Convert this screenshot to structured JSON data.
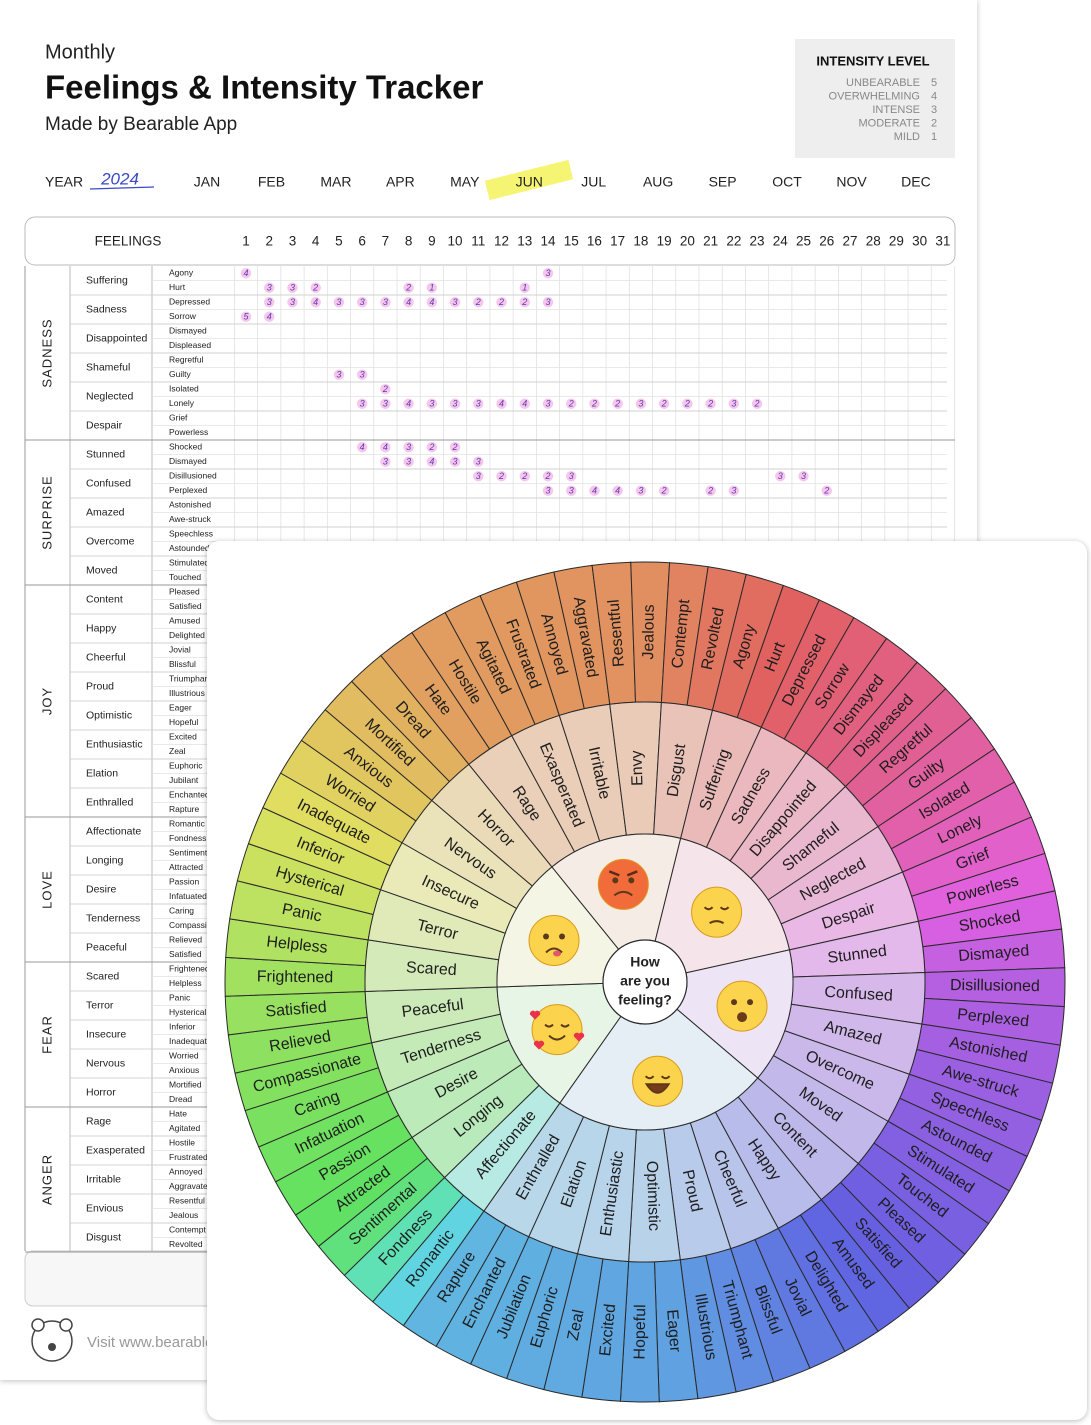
{
  "header": {
    "subtitle": "Monthly",
    "title": "Feelings & Intensity Tracker",
    "byline": "Made by Bearable App"
  },
  "intensity": {
    "title": "INTENSITY LEVEL",
    "levels": [
      {
        "label": "UNBEARABLE",
        "value": 5
      },
      {
        "label": "OVERWHELMING",
        "value": 4
      },
      {
        "label": "INTENSE",
        "value": 3
      },
      {
        "label": "MODERATE",
        "value": 2
      },
      {
        "label": "MILD",
        "value": 1
      }
    ]
  },
  "year": {
    "label": "YEAR",
    "value": "2024"
  },
  "months": [
    "JAN",
    "FEB",
    "MAR",
    "APR",
    "MAY",
    "JUN",
    "JUL",
    "AUG",
    "SEP",
    "OCT",
    "NOV",
    "DEC"
  ],
  "table": {
    "header": "FEELINGS",
    "days": [
      1,
      2,
      3,
      4,
      5,
      6,
      7,
      8,
      9,
      10,
      11,
      12,
      13,
      14,
      15,
      16,
      17,
      18,
      19,
      20,
      21,
      22,
      23,
      24,
      25,
      26,
      27,
      28,
      29,
      30,
      31
    ],
    "groups": [
      {
        "name": "SADNESS",
        "feelings": [
          {
            "name": "Suffering",
            "subs": [
              {
                "name": "Agony",
                "entries": {
                  "1": 4,
                  "14": 3
                }
              },
              {
                "name": "Hurt",
                "entries": {
                  "2": 3,
                  "3": 3,
                  "4": 2,
                  "8": 2,
                  "9": 1,
                  "13": 1
                }
              }
            ]
          },
          {
            "name": "Sadness",
            "subs": [
              {
                "name": "Depressed",
                "entries": {
                  "2": 3,
                  "3": 3,
                  "4": 4,
                  "5": 3,
                  "6": 3,
                  "7": 3,
                  "8": 4,
                  "9": 4,
                  "10": 3,
                  "11": 2,
                  "12": 2,
                  "13": 2,
                  "14": 3
                }
              },
              {
                "name": "Sorrow",
                "entries": {
                  "1": 5,
                  "2": 4
                }
              }
            ]
          },
          {
            "name": "Disappointed",
            "subs": [
              {
                "name": "Dismayed"
              },
              {
                "name": "Displeased"
              }
            ]
          },
          {
            "name": "Shameful",
            "subs": [
              {
                "name": "Regretful"
              },
              {
                "name": "Guilty",
                "entries": {
                  "5": 3,
                  "6": 3
                }
              }
            ]
          },
          {
            "name": "Neglected",
            "subs": [
              {
                "name": "Isolated",
                "entries": {
                  "7": 2
                }
              },
              {
                "name": "Lonely",
                "entries": {
                  "6": 3,
                  "7": 3,
                  "8": 4,
                  "9": 3,
                  "10": 3,
                  "11": 3,
                  "12": 4,
                  "13": 4,
                  "14": 3,
                  "15": 2,
                  "16": 2,
                  "17": 2,
                  "18": 3,
                  "19": 2,
                  "20": 2,
                  "21": 2,
                  "22": 3,
                  "23": 2
                }
              }
            ]
          },
          {
            "name": "Despair",
            "subs": [
              {
                "name": "Grief"
              },
              {
                "name": "Powerless"
              }
            ]
          }
        ]
      },
      {
        "name": "SURPRISE",
        "feelings": [
          {
            "name": "Stunned",
            "subs": [
              {
                "name": "Shocked",
                "entries": {
                  "6": 4,
                  "7": 4,
                  "8": 3,
                  "9": 2,
                  "10": 2
                }
              },
              {
                "name": "Dismayed",
                "entries": {
                  "7": 3,
                  "8": 3,
                  "9": 4,
                  "10": 3,
                  "11": 3
                }
              }
            ]
          },
          {
            "name": "Confused",
            "subs": [
              {
                "name": "Disillusioned",
                "entries": {
                  "11": 3,
                  "12": 2,
                  "13": 2,
                  "14": 2,
                  "15": 3,
                  "24": 3,
                  "25": 3
                }
              },
              {
                "name": "Perplexed",
                "entries": {
                  "14": 3,
                  "15": 3,
                  "16": 4,
                  "17": 4,
                  "18": 3,
                  "19": 2,
                  "21": 2,
                  "22": 3,
                  "26": 2
                }
              }
            ]
          },
          {
            "name": "Amazed",
            "subs": [
              {
                "name": "Astonished"
              },
              {
                "name": "Awe-struck"
              }
            ]
          },
          {
            "name": "Overcome",
            "subs": [
              {
                "name": "Speechless"
              },
              {
                "name": "Astounded"
              }
            ]
          },
          {
            "name": "Moved",
            "subs": [
              {
                "name": "Stimulated"
              },
              {
                "name": "Touched"
              }
            ]
          }
        ]
      },
      {
        "name": "JOY",
        "feelings": [
          {
            "name": "Content",
            "subs": [
              {
                "name": "Pleased"
              },
              {
                "name": "Satisfied"
              }
            ]
          },
          {
            "name": "Happy",
            "subs": [
              {
                "name": "Amused"
              },
              {
                "name": "Delighted"
              }
            ]
          },
          {
            "name": "Cheerful",
            "subs": [
              {
                "name": "Jovial"
              },
              {
                "name": "Blissful"
              }
            ]
          },
          {
            "name": "Proud",
            "subs": [
              {
                "name": "Triumphant"
              },
              {
                "name": "Illustrious"
              }
            ]
          },
          {
            "name": "Optimistic",
            "subs": [
              {
                "name": "Eager"
              },
              {
                "name": "Hopeful"
              }
            ]
          },
          {
            "name": "Enthusiastic",
            "subs": [
              {
                "name": "Excited"
              },
              {
                "name": "Zeal"
              }
            ]
          },
          {
            "name": "Elation",
            "subs": [
              {
                "name": "Euphoric"
              },
              {
                "name": "Jubilant"
              }
            ]
          },
          {
            "name": "Enthralled",
            "subs": [
              {
                "name": "Enchanted"
              },
              {
                "name": "Rapture"
              }
            ]
          }
        ]
      },
      {
        "name": "LOVE",
        "feelings": [
          {
            "name": "Affectionate",
            "subs": [
              {
                "name": "Romantic"
              },
              {
                "name": "Fondness"
              }
            ]
          },
          {
            "name": "Longing",
            "subs": [
              {
                "name": "Sentimental"
              },
              {
                "name": "Attracted"
              }
            ]
          },
          {
            "name": "Desire",
            "subs": [
              {
                "name": "Passion"
              },
              {
                "name": "Infatuated"
              }
            ]
          },
          {
            "name": "Tenderness",
            "subs": [
              {
                "name": "Caring"
              },
              {
                "name": "Compassionate"
              }
            ]
          },
          {
            "name": "Peaceful",
            "subs": [
              {
                "name": "Relieved"
              },
              {
                "name": "Satisfied"
              }
            ]
          }
        ]
      },
      {
        "name": "FEAR",
        "feelings": [
          {
            "name": "Scared",
            "subs": [
              {
                "name": "Frightened"
              },
              {
                "name": "Helpless"
              }
            ]
          },
          {
            "name": "Terror",
            "subs": [
              {
                "name": "Panic"
              },
              {
                "name": "Hysterical"
              }
            ]
          },
          {
            "name": "Insecure",
            "subs": [
              {
                "name": "Inferior"
              },
              {
                "name": "Inadequate"
              }
            ]
          },
          {
            "name": "Nervous",
            "subs": [
              {
                "name": "Worried"
              },
              {
                "name": "Anxious"
              }
            ]
          },
          {
            "name": "Horror",
            "subs": [
              {
                "name": "Mortified"
              },
              {
                "name": "Dread"
              }
            ]
          }
        ]
      },
      {
        "name": "ANGER",
        "feelings": [
          {
            "name": "Rage",
            "subs": [
              {
                "name": "Hate"
              },
              {
                "name": "Agitated"
              }
            ]
          },
          {
            "name": "Exasperated",
            "subs": [
              {
                "name": "Hostile"
              },
              {
                "name": "Frustrated"
              }
            ]
          },
          {
            "name": "Irritable",
            "subs": [
              {
                "name": "Annoyed"
              },
              {
                "name": "Aggravated"
              }
            ]
          },
          {
            "name": "Envious",
            "subs": [
              {
                "name": "Resentful"
              },
              {
                "name": "Jealous"
              }
            ]
          },
          {
            "name": "Disgust",
            "subs": [
              {
                "name": "Contempt"
              },
              {
                "name": "Revolted"
              }
            ]
          }
        ]
      }
    ]
  },
  "footer": {
    "text": "Visit www.bearable.app"
  },
  "wheel": {
    "center": [
      "How",
      "are you",
      "feeling?"
    ],
    "groups": [
      {
        "feelings": [
          {
            "name": "Rage",
            "subs": [
              "Hate",
              "Hostile"
            ]
          },
          {
            "name": "Exasperated",
            "subs": [
              "Agitated",
              "Frustrated"
            ]
          },
          {
            "name": "Irritable",
            "subs": [
              "Annoyed",
              "Aggravated"
            ]
          },
          {
            "name": "Envy",
            "subs": [
              "Resentful",
              "Jealous"
            ]
          },
          {
            "name": "Disgust",
            "subs": [
              "Contempt",
              "Revolted"
            ]
          }
        ]
      },
      {
        "feelings": [
          {
            "name": "Suffering",
            "subs": [
              "Agony",
              "Hurt"
            ]
          },
          {
            "name": "Sadness",
            "subs": [
              "Depressed",
              "Sorrow"
            ]
          },
          {
            "name": "Disappointed",
            "subs": [
              "Dismayed",
              "Displeased"
            ]
          },
          {
            "name": "Shameful",
            "subs": [
              "Regretful",
              "Guilty"
            ]
          },
          {
            "name": "Neglected",
            "subs": [
              "Isolated",
              "Lonely"
            ]
          },
          {
            "name": "Despair",
            "subs": [
              "Grief",
              "Powerless"
            ]
          }
        ]
      },
      {
        "feelings": [
          {
            "name": "Stunned",
            "subs": [
              "Shocked",
              "Dismayed"
            ]
          },
          {
            "name": "Confused",
            "subs": [
              "Disillusioned",
              "Perplexed"
            ]
          },
          {
            "name": "Amazed",
            "subs": [
              "Astonished",
              "Awe-struck"
            ]
          },
          {
            "name": "Overcome",
            "subs": [
              "Speechless",
              "Astounded"
            ]
          },
          {
            "name": "Moved",
            "subs": [
              "Stimulated",
              "Touched"
            ]
          }
        ]
      },
      {
        "feelings": [
          {
            "name": "Content",
            "subs": [
              "Pleased",
              "Satisfied"
            ]
          },
          {
            "name": "Happy",
            "subs": [
              "Amused",
              "Delighted"
            ]
          },
          {
            "name": "Cheerful",
            "subs": [
              "Jovial",
              "Blissful"
            ]
          },
          {
            "name": "Proud",
            "subs": [
              "Triumphant",
              "Illustrious"
            ]
          },
          {
            "name": "Optimistic",
            "subs": [
              "Eager",
              "Hopeful"
            ]
          },
          {
            "name": "Enthusiastic",
            "subs": [
              "Excited",
              "Zeal"
            ]
          },
          {
            "name": "Elation",
            "subs": [
              "Euphoric",
              "Jubilation"
            ]
          },
          {
            "name": "Enthralled",
            "subs": [
              "Enchanted",
              "Rapture"
            ]
          }
        ]
      },
      {
        "feelings": [
          {
            "name": "Affectionate",
            "subs": [
              "Romantic",
              "Fondness"
            ]
          },
          {
            "name": "Longing",
            "subs": [
              "Sentimental",
              "Attracted"
            ]
          },
          {
            "name": "Desire",
            "subs": [
              "Passion",
              "Infatuation"
            ]
          },
          {
            "name": "Tenderness",
            "subs": [
              "Caring",
              "Compassionate"
            ]
          },
          {
            "name": "Peaceful",
            "subs": [
              "Relieved",
              "Satisfied"
            ]
          }
        ]
      },
      {
        "feelings": [
          {
            "name": "Scared",
            "subs": [
              "Frightened",
              "Helpless"
            ]
          },
          {
            "name": "Terror",
            "subs": [
              "Panic",
              "Hysterical"
            ]
          },
          {
            "name": "Insecure",
            "subs": [
              "Inferior",
              "Inadequate"
            ]
          },
          {
            "name": "Nervous",
            "subs": [
              "Worried",
              "Anxious"
            ]
          },
          {
            "name": "Horror",
            "subs": [
              "Mortified",
              "Dread"
            ]
          }
        ]
      }
    ]
  }
}
